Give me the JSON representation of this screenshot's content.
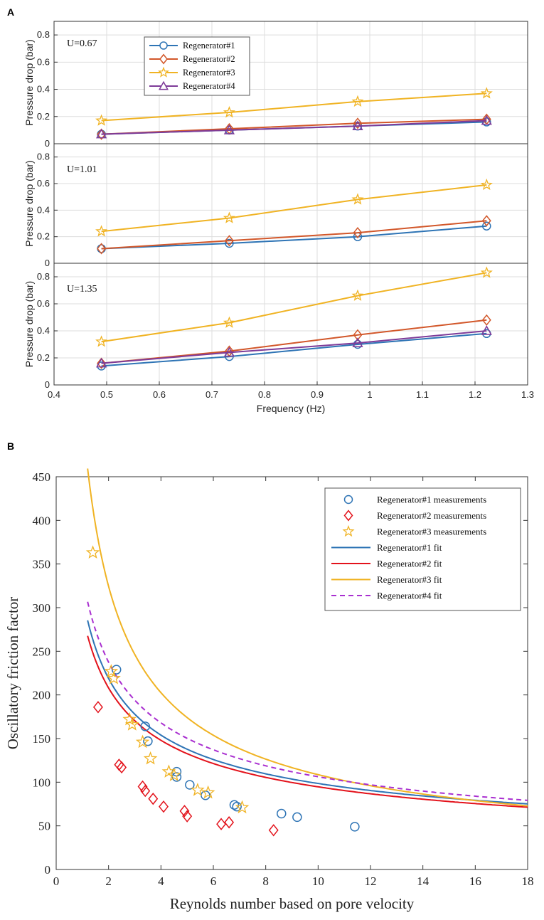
{
  "figure": {
    "panel_a_letter": "A",
    "panel_b_letter": "B"
  },
  "colors": {
    "reg1": "#2e74b5",
    "reg2": "#d2572a",
    "reg3": "#f0b323",
    "reg4": "#7e3b98",
    "reg2_fit": "#e3121b",
    "reg4_fit": "#a92fd0",
    "grid": "#dddddd",
    "axis": "#333333"
  },
  "chart_data": [
    {
      "type": "line",
      "title": "",
      "xlabel": "Frequency (Hz)",
      "ylabel": "Pressure drop (bar)",
      "xlim": [
        0.4,
        1.3
      ],
      "ylim": [
        0,
        0.9
      ],
      "xticks": [
        "0.4",
        "0.5",
        "0.6",
        "0.7",
        "0.8",
        "0.9",
        "1",
        "1.1",
        "1.2",
        "1.3"
      ],
      "yticks": [
        "0",
        "0.2",
        "0.4",
        "0.6",
        "0.8"
      ],
      "legend": {
        "position": "top-left",
        "entries": [
          "Regenerator#1",
          "Regenerator#2",
          "Regenerator#3",
          "Regenerator#4"
        ]
      },
      "x": [
        0.49,
        0.733,
        0.977,
        1.222
      ],
      "subplots": [
        {
          "annotation": "U=0.67",
          "series": [
            {
              "name": "Regenerator#1",
              "marker": "circle",
              "values": [
                0.07,
                0.1,
                0.13,
                0.16
              ]
            },
            {
              "name": "Regenerator#2",
              "marker": "diamond",
              "values": [
                0.07,
                0.11,
                0.15,
                0.18
              ]
            },
            {
              "name": "Regenerator#3",
              "marker": "star",
              "values": [
                0.17,
                0.23,
                0.31,
                0.37
              ]
            },
            {
              "name": "Regenerator#4",
              "marker": "triangle",
              "values": [
                0.07,
                0.1,
                0.13,
                0.17
              ]
            }
          ]
        },
        {
          "annotation": "U=1.01",
          "series": [
            {
              "name": "Regenerator#1",
              "marker": "circle",
              "values": [
                0.11,
                0.15,
                0.2,
                0.28
              ]
            },
            {
              "name": "Regenerator#2",
              "marker": "diamond",
              "values": [
                0.11,
                0.17,
                0.23,
                0.32
              ]
            },
            {
              "name": "Regenerator#3",
              "marker": "star",
              "values": [
                0.24,
                0.34,
                0.48,
                0.59
              ]
            }
          ]
        },
        {
          "annotation": "U=1.35",
          "series": [
            {
              "name": "Regenerator#1",
              "marker": "circle",
              "values": [
                0.14,
                0.21,
                0.3,
                0.38
              ]
            },
            {
              "name": "Regenerator#2",
              "marker": "diamond",
              "values": [
                0.16,
                0.25,
                0.37,
                0.48
              ]
            },
            {
              "name": "Regenerator#3",
              "marker": "star",
              "values": [
                0.32,
                0.46,
                0.66,
                0.83
              ]
            },
            {
              "name": "Regenerator#4",
              "marker": "triangle",
              "values": [
                0.16,
                0.24,
                0.31,
                0.4
              ]
            }
          ]
        }
      ]
    },
    {
      "type": "scatter",
      "title": "",
      "xlabel": "Reynolds number based on pore velocity",
      "ylabel": "Oscillatory friction factor",
      "xlim": [
        0,
        18
      ],
      "ylim": [
        0,
        450
      ],
      "xticks": [
        "0",
        "2",
        "4",
        "6",
        "8",
        "10",
        "12",
        "14",
        "16",
        "18"
      ],
      "yticks": [
        "0",
        "50",
        "100",
        "150",
        "200",
        "250",
        "300",
        "350",
        "400",
        "450"
      ],
      "legend": {
        "position": "top-right",
        "entries": [
          "Regenerator#1 measurements",
          "Regenerator#2 measurements",
          "Regenerator#3 measurements",
          "Regenerator#1 fit",
          "Regenerator#2 fit",
          "Regenerator#3 fit",
          "Regenerator#4 fit"
        ]
      },
      "measurements": [
        {
          "name": "Regenerator#1 measurements",
          "marker": "circle",
          "x": [
            2.3,
            3.4,
            3.5,
            4.6,
            4.6,
            5.1,
            5.7,
            6.8,
            6.9,
            8.6,
            9.2,
            11.4
          ],
          "y": [
            229,
            164,
            147,
            112,
            106,
            97,
            85,
            74,
            72,
            64,
            60,
            49
          ]
        },
        {
          "name": "Regenerator#2 measurements",
          "marker": "diamond",
          "x": [
            1.6,
            2.4,
            2.5,
            3.3,
            3.4,
            3.7,
            4.1,
            4.9,
            5.0,
            6.3,
            6.6,
            8.3
          ],
          "y": [
            186,
            120,
            117,
            95,
            90,
            81,
            72,
            67,
            61,
            52,
            54,
            45
          ]
        },
        {
          "name": "Regenerator#3 measurements",
          "marker": "star",
          "x": [
            1.4,
            2.1,
            2.2,
            2.8,
            2.9,
            3.3,
            3.6,
            4.3,
            4.5,
            5.4,
            5.8,
            7.1
          ],
          "y": [
            363,
            227,
            219,
            172,
            166,
            146,
            127,
            112,
            108,
            91,
            88,
            71
          ]
        }
      ],
      "fits": [
        {
          "name": "Regenerator#1 fit",
          "style": "solid",
          "a": 300,
          "b": -0.55,
          "c": 14,
          "x_range": [
            1.2,
            18
          ]
        },
        {
          "name": "Regenerator#2 fit",
          "style": "solid",
          "a": 290,
          "b": -0.5,
          "c": 3,
          "x_range": [
            1.2,
            18
          ]
        },
        {
          "name": "Regenerator#3 fit",
          "style": "solid",
          "a": 520,
          "b": -0.68,
          "c": 0,
          "x_range": [
            1.2,
            18
          ]
        },
        {
          "name": "Regenerator#4 fit",
          "style": "dashed",
          "a": 336,
          "b": -0.5,
          "c": 0,
          "x_range": [
            1.2,
            18
          ]
        }
      ]
    }
  ]
}
